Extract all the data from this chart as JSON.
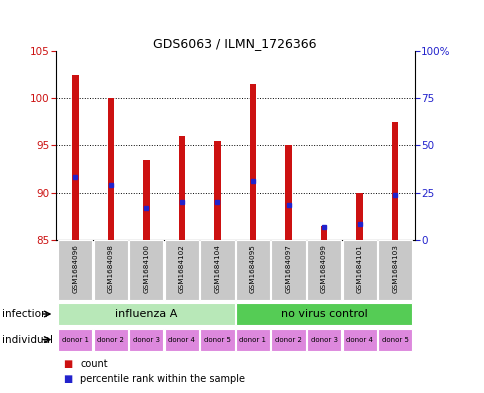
{
  "title": "GDS6063 / ILMN_1726366",
  "samples": [
    "GSM1684096",
    "GSM1684098",
    "GSM1684100",
    "GSM1684102",
    "GSM1684104",
    "GSM1684095",
    "GSM1684097",
    "GSM1684099",
    "GSM1684101",
    "GSM1684103"
  ],
  "bar_bottoms": [
    85,
    85,
    85,
    85,
    85,
    85,
    85,
    85,
    85,
    85
  ],
  "bar_tops": [
    102.5,
    100.0,
    93.5,
    96.0,
    95.5,
    101.5,
    95.0,
    86.5,
    90.0,
    97.5
  ],
  "blue_marker_pos": [
    91.7,
    90.8,
    88.4,
    89.0,
    89.0,
    91.2,
    88.7,
    86.3,
    86.7,
    89.7
  ],
  "ylim_left": [
    85,
    105
  ],
  "ylim_right": [
    0,
    100
  ],
  "yticks_left": [
    85,
    90,
    95,
    100,
    105
  ],
  "yticks_right": [
    0,
    25,
    50,
    75,
    100
  ],
  "ytick_labels_right": [
    "0",
    "25",
    "50",
    "75",
    "100%"
  ],
  "groups": [
    {
      "label": "influenza A",
      "start": 0,
      "end": 5,
      "color": "#b8e8b8"
    },
    {
      "label": "no virus control",
      "start": 5,
      "end": 10,
      "color": "#55cc55"
    }
  ],
  "individuals": [
    "donor 1",
    "donor 2",
    "donor 3",
    "donor 4",
    "donor 5",
    "donor 1",
    "donor 2",
    "donor 3",
    "donor 4",
    "donor 5"
  ],
  "individual_color": "#dd88dd",
  "bar_color": "#cc1111",
  "blue_color": "#2222cc",
  "sample_box_color": "#c8c8c8",
  "legend_count_color": "#cc1111",
  "legend_percentile_color": "#2222cc",
  "infection_label": "infection",
  "individual_label": "individual",
  "grid_color": "#000000",
  "bar_width": 0.18
}
